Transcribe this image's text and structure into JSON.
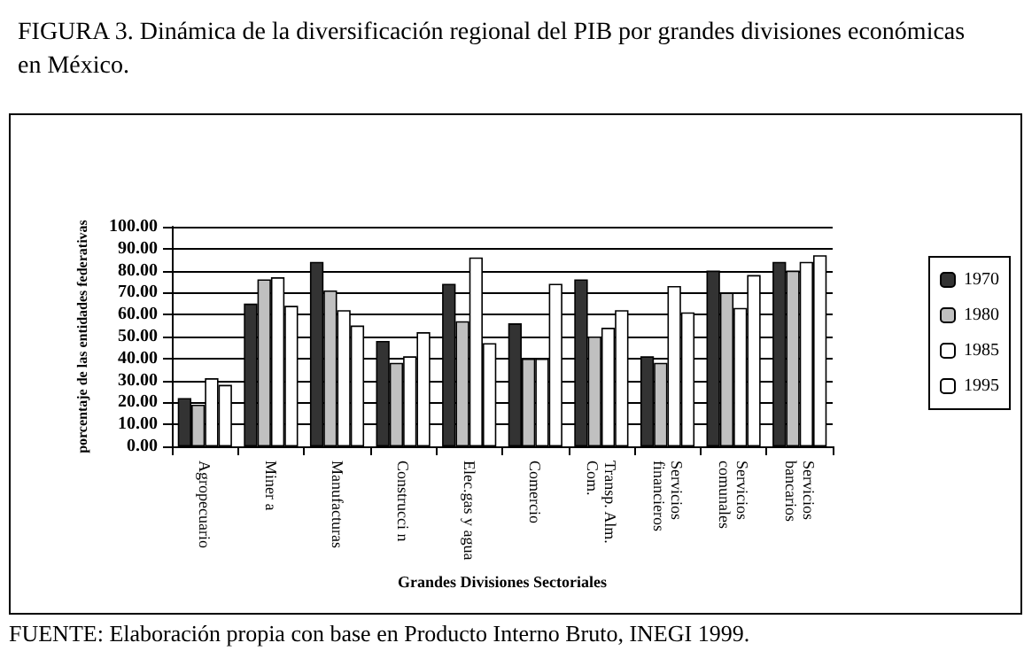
{
  "chart_data": {
    "type": "bar",
    "title": "FIGURA 3. Dinámica de la diversificación regional del PIB por grandes divisiones económicas en México.",
    "xlabel": "Grandes Divisiones Sectoriales",
    "ylabel": "porcentaje de las entidades federativas",
    "annotations": [
      "FUENTE: Elaboración propia con base en Producto Interno Bruto, INEGI 1999."
    ],
    "categories": [
      "Agropecuario",
      "Miner a",
      "Manufacturas",
      "Construcci n",
      "Elec.gas y agua",
      "Comercio",
      "Transp. Alm. Com.",
      "Servicios financieros",
      "Servicios comunales",
      "Servicios bancarios"
    ],
    "series": [
      {
        "name": "1970",
        "color": "#333333",
        "values": [
          22,
          65,
          84,
          48,
          74,
          56,
          76,
          41,
          80,
          84
        ]
      },
      {
        "name": "1980",
        "color": "#c0c0c0",
        "values": [
          19,
          76,
          71,
          38,
          57,
          40,
          50,
          38,
          70,
          80
        ]
      },
      {
        "name": "1985",
        "color": "#ffffff",
        "values": [
          31,
          77,
          62,
          41,
          86,
          40,
          54,
          73,
          63,
          84
        ]
      },
      {
        "name": "1995",
        "color": "#ffffff",
        "values": [
          28,
          64,
          55,
          52,
          47,
          74,
          62,
          61,
          78,
          87
        ]
      }
    ],
    "ylim": [
      0,
      100
    ],
    "yticks": [
      {
        "value": 0,
        "label": "0.00"
      },
      {
        "value": 10,
        "label": "10.00"
      },
      {
        "value": 20,
        "label": "20.00"
      },
      {
        "value": 30,
        "label": "30.00"
      },
      {
        "value": 40,
        "label": "40.00"
      },
      {
        "value": 50,
        "label": "50.00"
      },
      {
        "value": 60,
        "label": "60.00"
      },
      {
        "value": 70,
        "label": "70.00"
      },
      {
        "value": 80,
        "label": "80.00"
      },
      {
        "value": 90,
        "label": "90.00"
      },
      {
        "value": 100,
        "label": "100.00"
      }
    ],
    "grid": "y",
    "legend": "right"
  }
}
